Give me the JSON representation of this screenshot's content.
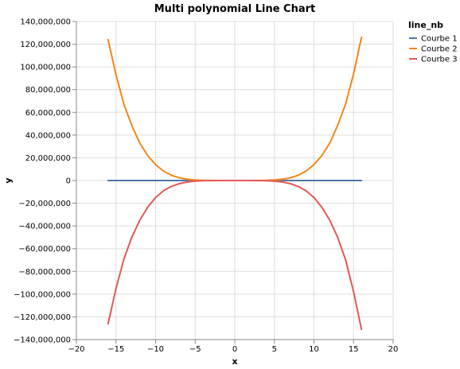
{
  "chart_data": {
    "type": "line",
    "title": "Multi polynomial Line Chart",
    "xlabel": "x",
    "ylabel": "y",
    "xlim": [
      -20,
      20
    ],
    "ylim": [
      -140000000,
      140000000
    ],
    "x_ticks": [
      -20,
      -15,
      -10,
      -5,
      0,
      5,
      10,
      15,
      20
    ],
    "x_tick_labels": [
      "−20",
      "−15",
      "−10",
      "−5",
      "0",
      "5",
      "10",
      "15",
      "20"
    ],
    "y_ticks": [
      140000000,
      120000000,
      100000000,
      80000000,
      60000000,
      40000000,
      20000000,
      0,
      -20000000,
      -40000000,
      -60000000,
      -80000000,
      -100000000,
      -120000000,
      -140000000
    ],
    "y_tick_labels": [
      "140,000,000",
      "120,000,000",
      "100,000,000",
      "80,000,000",
      "60,000,000",
      "40,000,000",
      "20,000,000",
      "0",
      "−20,000,000",
      "−40,000,000",
      "−60,000,000",
      "−80,000,000",
      "−100,000,000",
      "−120,000,000",
      "−140,000,000"
    ],
    "grid": true,
    "legend": {
      "title": "line_nb",
      "placement": "right"
    },
    "series": [
      {
        "name": "Courbe 1",
        "color": "#4c78a8",
        "x": [
          -16,
          -14,
          -12,
          -10,
          -8,
          -6,
          -4,
          -2,
          0,
          2,
          4,
          6,
          8,
          10,
          12,
          14,
          16
        ],
        "y": [
          0,
          0,
          0,
          0,
          0,
          0,
          0,
          0,
          0,
          0,
          0,
          0,
          0,
          0,
          0,
          0,
          0
        ]
      },
      {
        "name": "Courbe 2",
        "color": "#f58518",
        "x": [
          -16,
          -15,
          -14,
          -13,
          -12,
          -11,
          -10,
          -9,
          -8,
          -7,
          -6,
          -5,
          -4,
          -3,
          -2,
          -1,
          0,
          1,
          2,
          3,
          4,
          5,
          6,
          7,
          8,
          9,
          10,
          11,
          12,
          13,
          14,
          15,
          16
        ],
        "y": [
          124000000,
          93000000,
          67000000,
          48500000,
          33000000,
          22000000,
          14000000,
          8300000,
          4600000,
          2400000,
          1100000,
          470000,
          160000,
          40000,
          6000,
          300,
          0,
          300,
          6000,
          40000,
          160000,
          470000,
          1100000,
          2400000,
          4600000,
          8300000,
          14000000,
          22000000,
          33000000,
          48500000,
          67500000,
          94000000,
          126000000
        ]
      },
      {
        "name": "Courbe 3",
        "color": "#e45756",
        "x": [
          -16,
          -15,
          -14,
          -13,
          -12,
          -11,
          -10,
          -9,
          -8,
          -7,
          -6,
          -5,
          -4,
          -3,
          -2,
          -1,
          0,
          1,
          2,
          3,
          4,
          5,
          6,
          7,
          8,
          9,
          10,
          11,
          12,
          13,
          14,
          15,
          16
        ],
        "y": [
          -126000000,
          -95000000,
          -69000000,
          -50000000,
          -35000000,
          -23500000,
          -15000000,
          -9000000,
          -5200000,
          -2700000,
          -1300000,
          -530000,
          -180000,
          -45000,
          -7000,
          -400,
          0,
          -400,
          -7000,
          -45000,
          -180000,
          -530000,
          -1300000,
          -2700000,
          -5200000,
          -9000000,
          -15000000,
          -23500000,
          -35000000,
          -50000000,
          -70000000,
          -98000000,
          -131000000
        ]
      }
    ]
  }
}
